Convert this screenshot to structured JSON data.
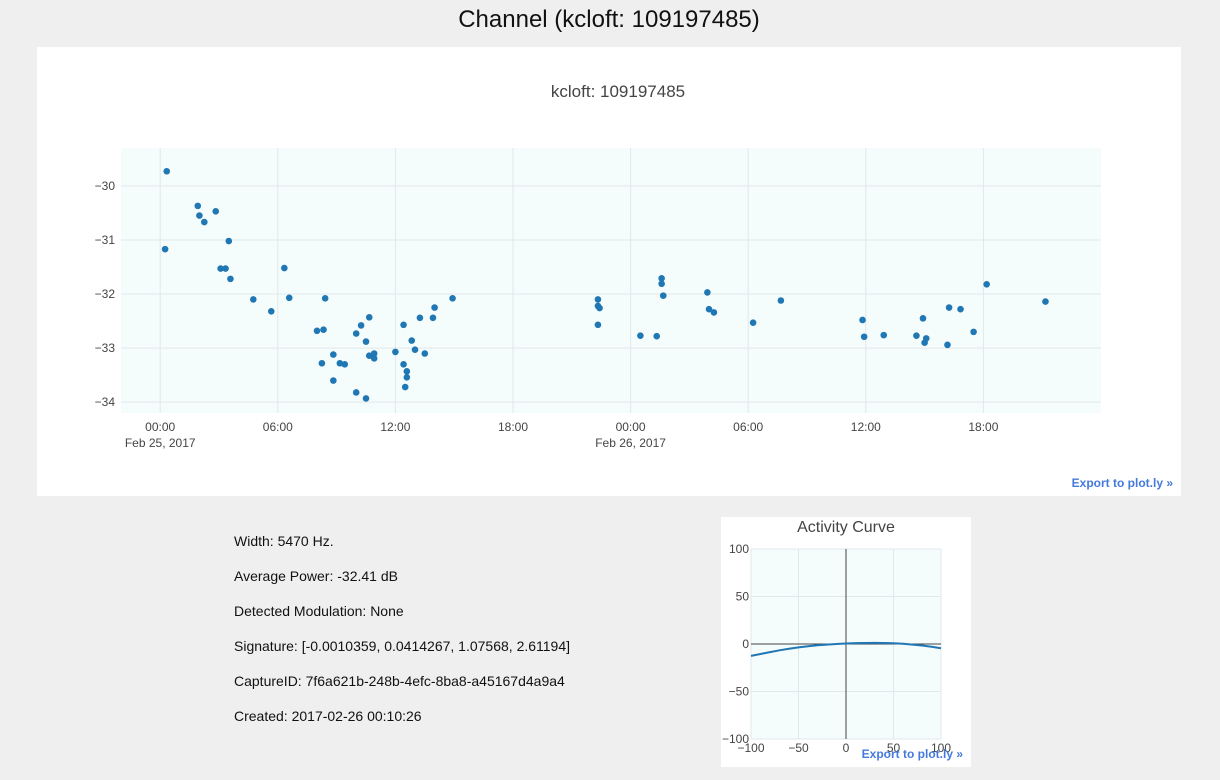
{
  "page": {
    "title": "Channel (kcloft: 109197485)"
  },
  "main_chart": {
    "export_label": "Export to plot.ly »"
  },
  "info": {
    "width": "Width: 5470 Hz.",
    "avg_power": "Average Power: -32.41 dB",
    "modulation": "Detected Modulation: None",
    "signature": "Signature: [-0.0010359, 0.0414267, 1.07568, 2.61194]",
    "capture_id": "CaptureID: 7f6a621b-248b-4efc-8ba8-a45167d4a9a4",
    "created": "Created: 2017-02-26 00:10:26"
  },
  "activity_chart": {
    "export_label": "Export to plot.ly »"
  },
  "colors": {
    "marker": "#1f77b4",
    "plot_bg": "#f5fcfc",
    "grid": "#e1e8ec",
    "link": "#447adb"
  },
  "chart_data": [
    {
      "type": "scatter",
      "title": "kcloft: 109197485",
      "xaxis": "datetime",
      "xlim": [
        "2017-02-24 22:00",
        "2017-02-27 00:00"
      ],
      "ylim": [
        -34.2,
        -29.3
      ],
      "yticks": [
        -34,
        -33,
        -32,
        -31,
        -30
      ],
      "xticks": [
        {
          "x": "2017-02-25 00:00",
          "label": "00:00",
          "sublabel": "Feb 25, 2017"
        },
        {
          "x": "2017-02-25 06:00",
          "label": "06:00"
        },
        {
          "x": "2017-02-25 12:00",
          "label": "12:00"
        },
        {
          "x": "2017-02-25 18:00",
          "label": "18:00"
        },
        {
          "x": "2017-02-26 00:00",
          "label": "00:00",
          "sublabel": "Feb 26, 2017"
        },
        {
          "x": "2017-02-26 06:00",
          "label": "06:00"
        },
        {
          "x": "2017-02-26 12:00",
          "label": "12:00"
        },
        {
          "x": "2017-02-26 18:00",
          "label": "18:00"
        }
      ],
      "series": [
        {
          "points": [
            [
              "2017-02-25 00:20",
              -29.73
            ],
            [
              "2017-02-25 00:15",
              -31.17
            ],
            [
              "2017-02-25 01:55",
              -30.37
            ],
            [
              "2017-02-25 02:00",
              -30.55
            ],
            [
              "2017-02-25 02:15",
              -30.67
            ],
            [
              "2017-02-25 02:50",
              -30.47
            ],
            [
              "2017-02-25 03:05",
              -31.53
            ],
            [
              "2017-02-25 03:20",
              -31.53
            ],
            [
              "2017-02-25 03:30",
              -31.02
            ],
            [
              "2017-02-25 03:35",
              -31.72
            ],
            [
              "2017-02-25 04:45",
              -32.1
            ],
            [
              "2017-02-25 05:40",
              -32.32
            ],
            [
              "2017-02-25 06:20",
              -31.52
            ],
            [
              "2017-02-25 06:35",
              -32.07
            ],
            [
              "2017-02-25 08:00",
              -32.68
            ],
            [
              "2017-02-25 08:15",
              -33.28
            ],
            [
              "2017-02-25 08:20",
              -32.66
            ],
            [
              "2017-02-25 08:25",
              -32.08
            ],
            [
              "2017-02-25 08:50",
              -33.12
            ],
            [
              "2017-02-25 08:50",
              -33.6
            ],
            [
              "2017-02-25 09:10",
              -33.28
            ],
            [
              "2017-02-25 09:25",
              -33.3
            ],
            [
              "2017-02-25 10:00",
              -32.73
            ],
            [
              "2017-02-25 10:00",
              -33.82
            ],
            [
              "2017-02-25 10:15",
              -32.58
            ],
            [
              "2017-02-25 10:30",
              -32.88
            ],
            [
              "2017-02-25 10:30",
              -33.93
            ],
            [
              "2017-02-25 10:40",
              -32.43
            ],
            [
              "2017-02-25 10:40",
              -33.14
            ],
            [
              "2017-02-25 10:55",
              -33.1
            ],
            [
              "2017-02-25 10:55",
              -33.19
            ],
            [
              "2017-02-25 12:00",
              -33.07
            ],
            [
              "2017-02-25 12:25",
              -32.57
            ],
            [
              "2017-02-25 12:25",
              -33.3
            ],
            [
              "2017-02-25 12:30",
              -33.72
            ],
            [
              "2017-02-25 12:35",
              -33.43
            ],
            [
              "2017-02-25 12:35",
              -33.54
            ],
            [
              "2017-02-25 12:50",
              -32.86
            ],
            [
              "2017-02-25 13:00",
              -33.03
            ],
            [
              "2017-02-25 13:15",
              -32.44
            ],
            [
              "2017-02-25 13:30",
              -33.1
            ],
            [
              "2017-02-25 13:55",
              -32.44
            ],
            [
              "2017-02-25 14:00",
              -32.25
            ],
            [
              "2017-02-25 14:55",
              -32.08
            ],
            [
              "2017-02-25 22:20",
              -32.1
            ],
            [
              "2017-02-25 22:20",
              -32.22
            ],
            [
              "2017-02-25 22:20",
              -32.57
            ],
            [
              "2017-02-25 22:25",
              -32.26
            ],
            [
              "2017-02-26 00:30",
              -32.77
            ],
            [
              "2017-02-26 01:20",
              -32.78
            ],
            [
              "2017-02-26 01:35",
              -31.71
            ],
            [
              "2017-02-26 01:35",
              -31.81
            ],
            [
              "2017-02-26 01:40",
              -32.03
            ],
            [
              "2017-02-26 03:55",
              -31.97
            ],
            [
              "2017-02-26 04:00",
              -32.28
            ],
            [
              "2017-02-26 04:15",
              -32.34
            ],
            [
              "2017-02-26 06:15",
              -32.53
            ],
            [
              "2017-02-26 07:40",
              -32.12
            ],
            [
              "2017-02-26 11:50",
              -32.48
            ],
            [
              "2017-02-26 11:55",
              -32.79
            ],
            [
              "2017-02-26 12:55",
              -32.76
            ],
            [
              "2017-02-26 14:35",
              -32.77
            ],
            [
              "2017-02-26 14:55",
              -32.45
            ],
            [
              "2017-02-26 15:00",
              -32.9
            ],
            [
              "2017-02-26 15:05",
              -32.82
            ],
            [
              "2017-02-26 16:10",
              -32.94
            ],
            [
              "2017-02-26 16:15",
              -32.25
            ],
            [
              "2017-02-26 16:50",
              -32.28
            ],
            [
              "2017-02-26 17:30",
              -32.7
            ],
            [
              "2017-02-26 18:10",
              -31.82
            ],
            [
              "2017-02-26 21:10",
              -32.14
            ]
          ]
        }
      ]
    },
    {
      "type": "line",
      "title": "Activity Curve",
      "xlim": [
        -100,
        100
      ],
      "ylim": [
        -100,
        100
      ],
      "xticks": [
        -100,
        -50,
        0,
        50,
        100
      ],
      "yticks": [
        -100,
        -50,
        0,
        50,
        100
      ],
      "series": [
        {
          "x": [
            -100,
            -90,
            -80,
            -70,
            -60,
            -50,
            -40,
            -30,
            -20,
            -10,
            0,
            10,
            20,
            30,
            40,
            50,
            60,
            70,
            80,
            90,
            100
          ],
          "y": [
            -12.5,
            -10.5,
            -8.5,
            -6.6,
            -5.0,
            -3.6,
            -2.4,
            -1.4,
            -0.6,
            0,
            0.5,
            0.9,
            1.1,
            1.2,
            1.1,
            0.8,
            0.2,
            -0.6,
            -1.6,
            -2.9,
            -4.5
          ]
        }
      ]
    }
  ]
}
